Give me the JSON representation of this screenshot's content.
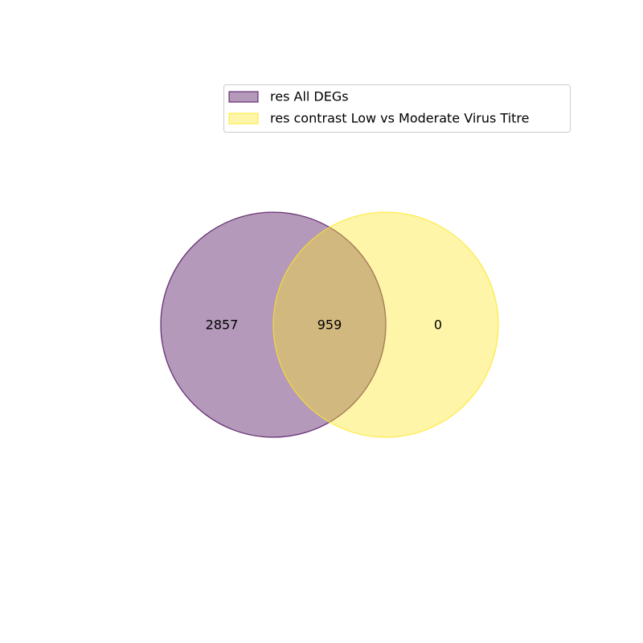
{
  "chart_data": {
    "type": "venn",
    "sets": [
      {
        "name": "res All DEGs",
        "color": "#440154",
        "fill_opacity": 0.4
      },
      {
        "name": "res contrast Low vs Moderate Virus Titre",
        "color": "#fde725",
        "fill_opacity": 0.4
      }
    ],
    "regions": [
      {
        "sets": [
          "res All DEGs"
        ],
        "count": 2857,
        "label": "2857"
      },
      {
        "sets": [
          "res All DEGs",
          "res contrast Low vs Moderate Virus Titre"
        ],
        "count": 959,
        "label": "959"
      },
      {
        "sets": [
          "res contrast Low vs Moderate Virus Titre"
        ],
        "count": 0,
        "label": "0"
      }
    ],
    "legend_position": "top-right"
  }
}
